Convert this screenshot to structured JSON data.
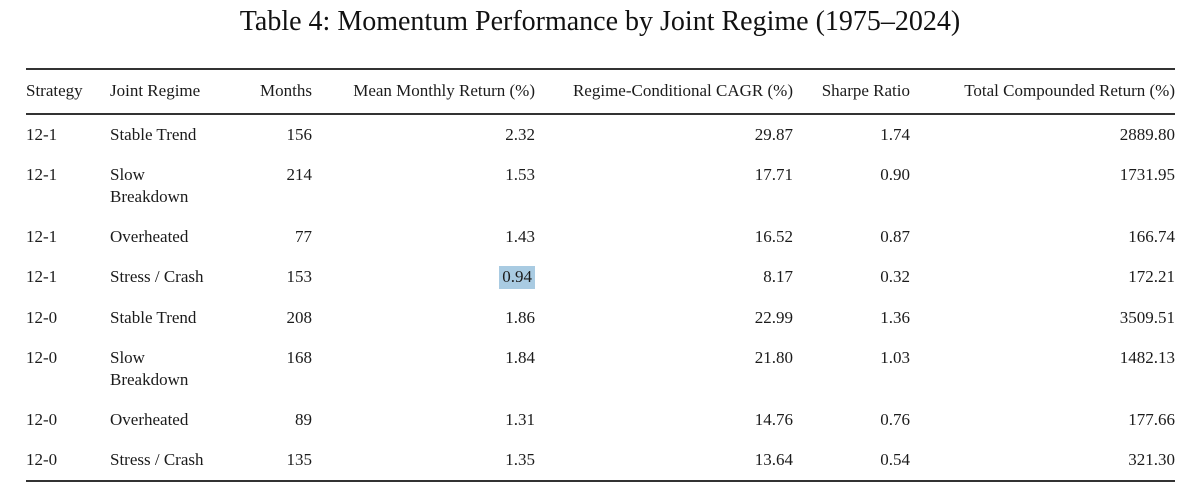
{
  "caption": "Table 4: Momentum Performance by Joint Regime (1975–2024)",
  "table": {
    "headers": {
      "strategy": "Strategy",
      "regime": "Joint Regime",
      "months": "Months",
      "mean": "Mean Monthly Return (%)",
      "cagr": "Regime-Conditional CAGR (%)",
      "sharpe": "Sharpe Ratio",
      "total": "Total Compounded Return (%)"
    },
    "rows": [
      {
        "strategy": "12-1",
        "regime": "Stable Trend",
        "months": "156",
        "mean": "2.32",
        "cagr": "29.87",
        "sharpe": "1.74",
        "total": "2889.80"
      },
      {
        "strategy": "12-1",
        "regime": "Slow\nBreakdown",
        "months": "214",
        "mean": "1.53",
        "cagr": "17.71",
        "sharpe": "0.90",
        "total": "1731.95"
      },
      {
        "strategy": "12-1",
        "regime": "Overheated",
        "months": "77",
        "mean": "1.43",
        "cagr": "16.52",
        "sharpe": "0.87",
        "total": "166.74"
      },
      {
        "strategy": "12-1",
        "regime": "Stress / Crash",
        "months": "153",
        "mean": "0.94",
        "cagr": "8.17",
        "sharpe": "0.32",
        "total": "172.21"
      },
      {
        "strategy": "12-0",
        "regime": "Stable Trend",
        "months": "208",
        "mean": "1.86",
        "cagr": "22.99",
        "sharpe": "1.36",
        "total": "3509.51"
      },
      {
        "strategy": "12-0",
        "regime": "Slow\nBreakdown",
        "months": "168",
        "mean": "1.84",
        "cagr": "21.80",
        "sharpe": "1.03",
        "total": "1482.13"
      },
      {
        "strategy": "12-0",
        "regime": "Overheated",
        "months": "89",
        "mean": "1.31",
        "cagr": "14.76",
        "sharpe": "0.76",
        "total": "177.66"
      },
      {
        "strategy": "12-0",
        "regime": "Stress / Crash",
        "months": "135",
        "mean": "1.35",
        "cagr": "13.64",
        "sharpe": "0.54",
        "total": "321.30"
      }
    ],
    "highlight": {
      "row_index": 3,
      "column": "mean",
      "value": "0.94",
      "color": "#a9cbe2"
    }
  }
}
